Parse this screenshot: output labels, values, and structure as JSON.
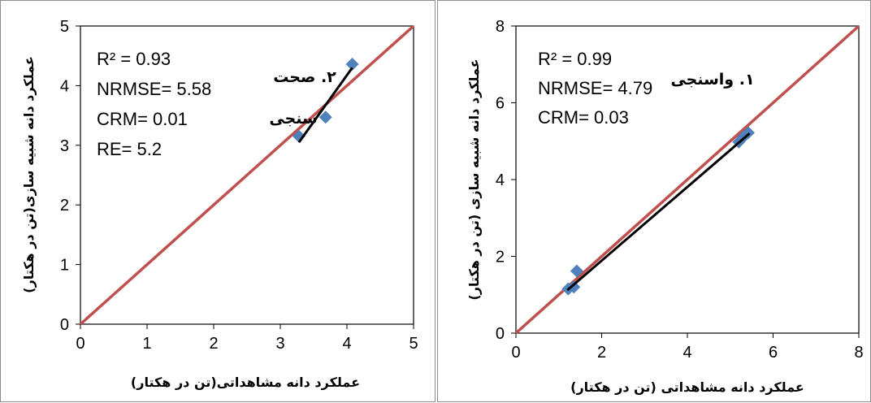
{
  "colors": {
    "identity_line": "#c0504d",
    "marker": "#4f81bd",
    "trendline": "#000000",
    "frame": "#000000"
  },
  "chart_data": [
    {
      "type": "scatter",
      "panel": "left",
      "title": "",
      "annotation_lines": [
        "۲. صحت",
        "سنجی"
      ],
      "xlabel": "عملکرد دانه مشاهداتی(تن در هکتار)",
      "ylabel": "عملکرد دانه شبیه سازی(تن در هکتار)",
      "xlim": [
        0,
        5
      ],
      "ylim": [
        0,
        5
      ],
      "xticks": [
        "0",
        "1",
        "2",
        "3",
        "4",
        "5"
      ],
      "yticks": [
        "0",
        "1",
        "2",
        "3",
        "4",
        "5"
      ],
      "stats": [
        "R² = 0.93",
        "NRMSE= 5.58",
        "CRM= 0.01",
        "RE= 5.2"
      ],
      "points": [
        {
          "x": 3.28,
          "y": 3.15
        },
        {
          "x": 3.68,
          "y": 3.47
        },
        {
          "x": 4.08,
          "y": 4.36
        }
      ],
      "trendline": [
        {
          "x": 3.28,
          "y": 3.05
        },
        {
          "x": 4.08,
          "y": 4.3
        }
      ],
      "identity_line": true,
      "legend": "none",
      "grid": false
    },
    {
      "type": "scatter",
      "panel": "right",
      "title": "",
      "annotation_lines": [
        "۱. واسنجی"
      ],
      "xlabel": "عملکرد دانه مشاهداتی (تن در هکتار)",
      "ylabel": "عملکرد دانه شبیه سازی (تن در هکتار)",
      "xlim": [
        0,
        8
      ],
      "ylim": [
        0,
        8
      ],
      "xticks": [
        "0",
        "2",
        "4",
        "6",
        "8"
      ],
      "yticks": [
        "0",
        "2",
        "4",
        "6",
        "8"
      ],
      "stats": [
        "R² = 0.99",
        "NRMSE= 4.79",
        "CRM= 0.03"
      ],
      "points": [
        {
          "x": 1.22,
          "y": 1.15
        },
        {
          "x": 1.35,
          "y": 1.2
        },
        {
          "x": 1.42,
          "y": 1.62
        },
        {
          "x": 5.2,
          "y": 4.98
        },
        {
          "x": 5.3,
          "y": 5.1
        },
        {
          "x": 5.42,
          "y": 5.22
        }
      ],
      "trendline": [
        {
          "x": 1.2,
          "y": 1.12
        },
        {
          "x": 5.45,
          "y": 5.2
        }
      ],
      "identity_line": true,
      "legend": "none",
      "grid": false
    }
  ]
}
